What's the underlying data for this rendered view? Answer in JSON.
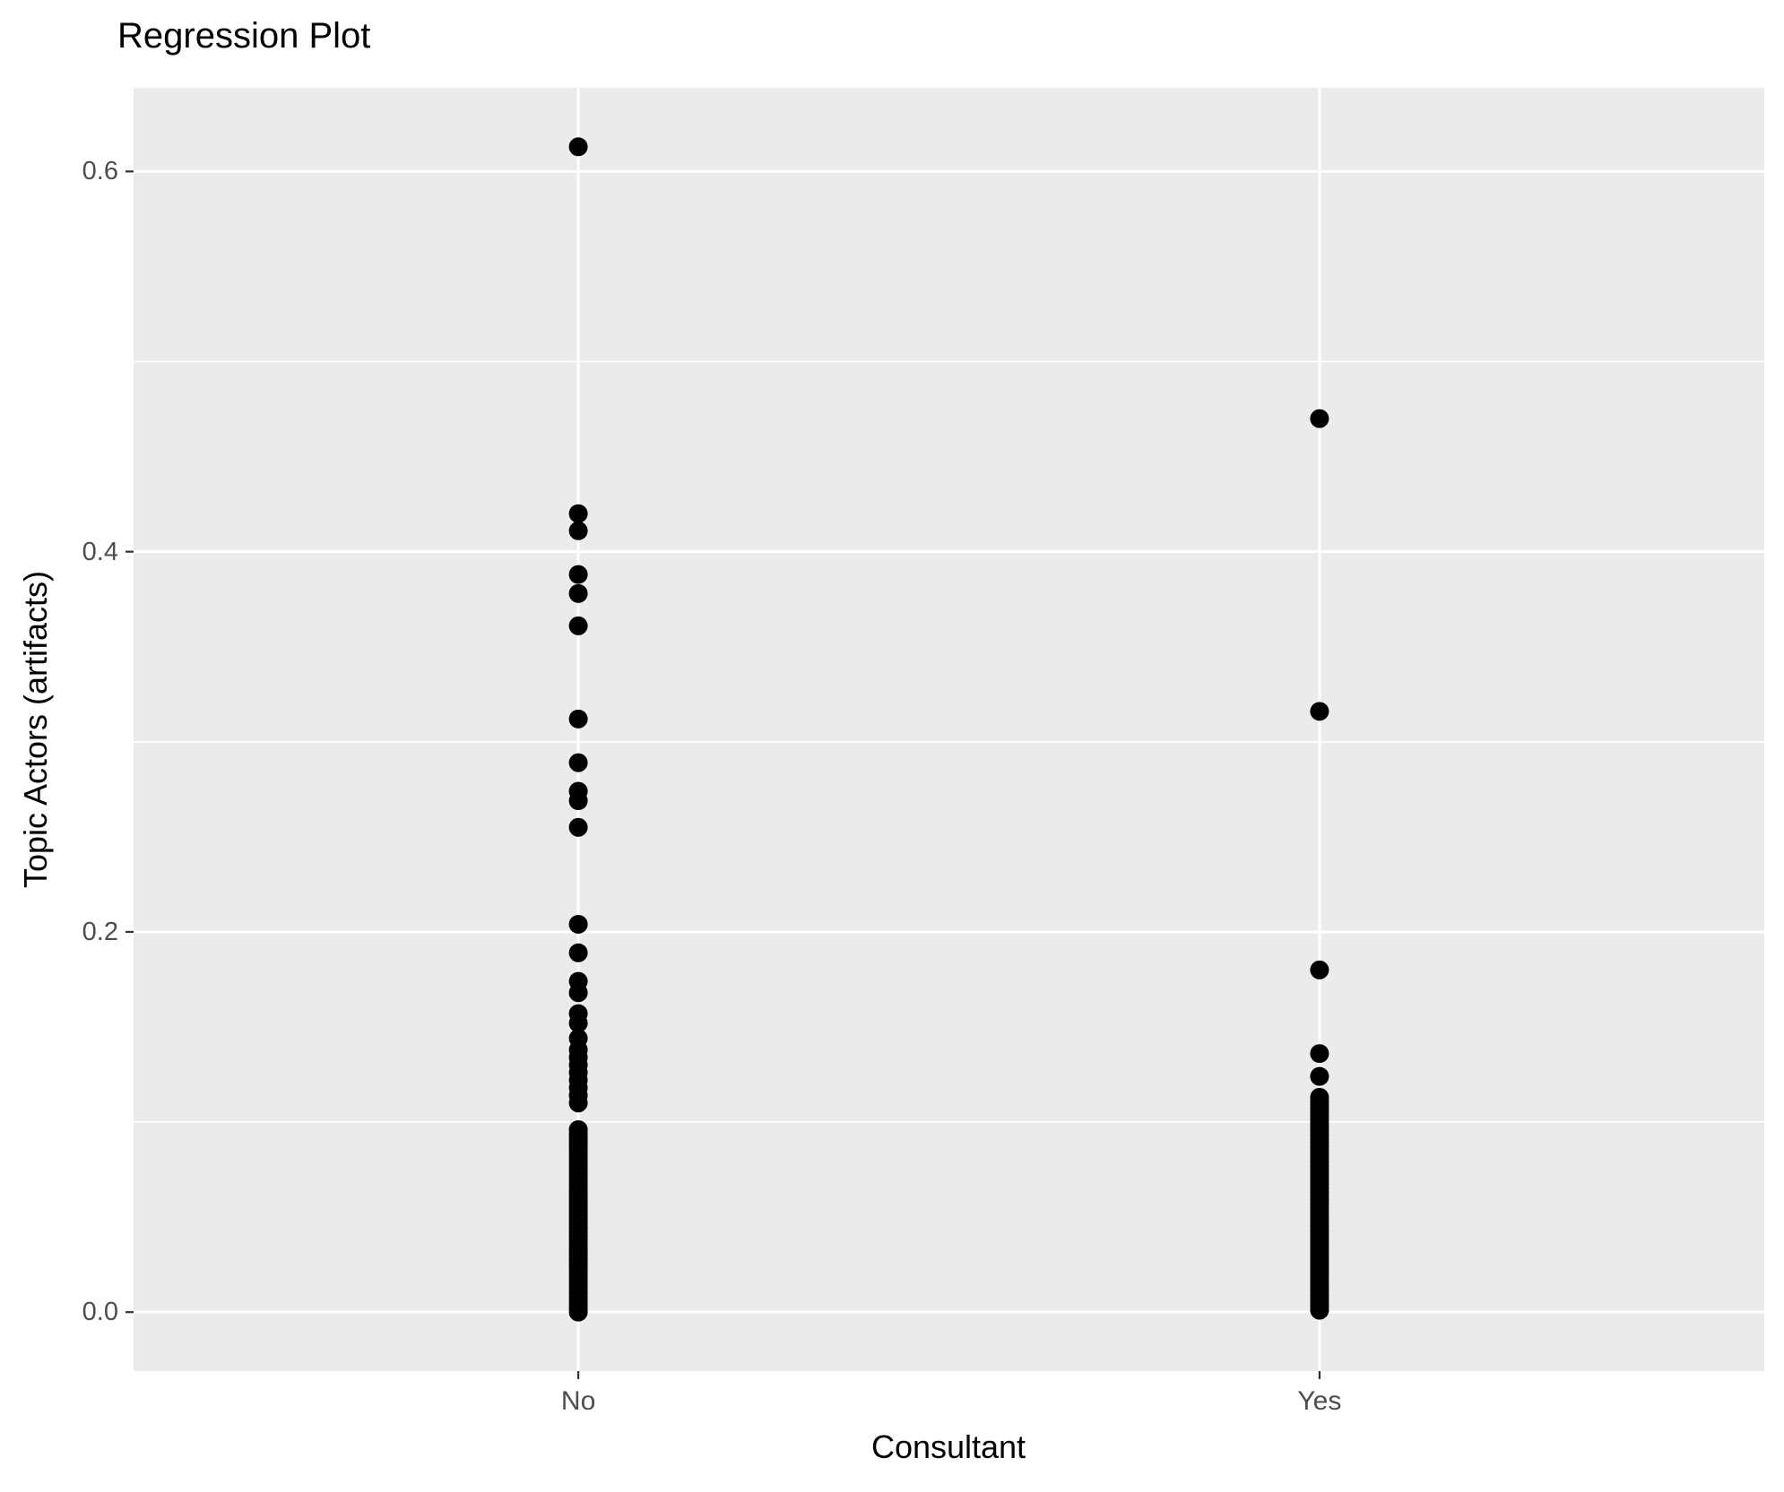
{
  "chart_data": {
    "type": "scatter",
    "title": "Regression Plot",
    "xlabel": "Consultant",
    "ylabel": "Topic Actors (artifacts)",
    "categories": [
      "No",
      "Yes"
    ],
    "ylim": [
      -0.031,
      0.644
    ],
    "y_ticks": {
      "major": [
        0.0,
        0.2,
        0.4,
        0.6
      ],
      "major_labels": [
        "0.0",
        "0.2",
        "0.4",
        "0.6"
      ],
      "minor": [
        0.1,
        0.3,
        0.5
      ]
    },
    "grid": true,
    "legend": "none",
    "colors": {
      "panel_bg": "#EBEBEB",
      "grid": "#FFFFFF",
      "point": "#000000",
      "tick_label": "#4D4D4D",
      "tick_mark": "#333333",
      "title": "#000000"
    },
    "point_radius": 10.5,
    "series": [
      {
        "name": "No",
        "points": [
          0.613,
          0.42,
          0.411,
          0.388,
          0.378,
          0.361,
          0.312,
          0.289,
          0.274,
          0.269,
          0.255,
          0.204,
          0.189,
          0.174,
          0.168,
          0.157,
          0.152,
          0.144
        ],
        "dense_ranges": [
          {
            "from": 0.138,
            "to": 0.108,
            "step": 0.004
          },
          {
            "from": 0.096,
            "to": 0.0,
            "step": 0.002
          }
        ]
      },
      {
        "name": "Yes",
        "points": [
          0.47,
          0.316,
          0.18,
          0.136,
          0.124
        ],
        "dense_ranges": [
          {
            "from": 0.113,
            "to": 0.0,
            "step": 0.002
          }
        ]
      }
    ]
  }
}
